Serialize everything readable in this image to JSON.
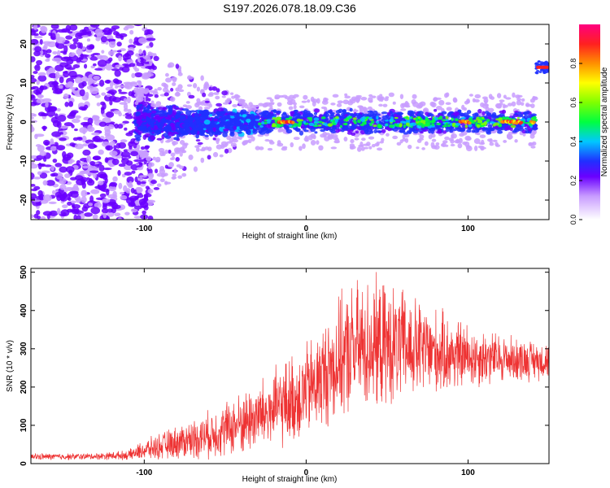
{
  "title": "S197.2026.078.18.09.C36",
  "chart_data": [
    {
      "type": "heatmap",
      "title": "S197.2026.078.18.09.C36",
      "xlabel": "Height of straight line (km)",
      "ylabel": "Frequency (Hz)",
      "xlim": [
        -170,
        150
      ],
      "ylim": [
        -25,
        25
      ],
      "xticks": [
        -100,
        0,
        100
      ],
      "xtick_labels": [
        "-100",
        "0",
        "100"
      ],
      "yticks": [
        -20,
        -10,
        0,
        10,
        20
      ],
      "ytick_labels": [
        "-20",
        "-10",
        "0",
        "10",
        "20"
      ],
      "colorbar": {
        "label": "Normalized spectral amplitude",
        "range": [
          0,
          1
        ],
        "ticks": [
          0,
          0.2,
          0.4,
          0.6,
          0.8
        ],
        "tick_labels": [
          "0.0",
          "0.2",
          "0.4",
          "0.6",
          "0.8"
        ]
      },
      "features": {
        "noise_region_x": [
          -170,
          -105
        ],
        "dispersed_band_x": [
          -105,
          -30
        ],
        "signal_line_frequency_hz": 0,
        "signal_line_x": [
          -30,
          142
        ],
        "secondary_signal": {
          "x": [
            142,
            150
          ],
          "frequency_hz": 14
        }
      }
    },
    {
      "type": "line",
      "xlabel": "Height of straight line (km)",
      "ylabel": "SNR (10 * v/v)",
      "xlim": [
        -170,
        150
      ],
      "ylim": [
        0,
        510
      ],
      "xticks": [
        -100,
        0,
        100
      ],
      "xtick_labels": [
        "-100",
        "0",
        "100"
      ],
      "yticks": [
        0,
        100,
        200,
        300,
        400,
        500
      ],
      "ytick_labels": [
        "0",
        "100",
        "200",
        "300",
        "400",
        "500"
      ],
      "color": "#ee3333",
      "envelope": {
        "x": [
          -170,
          -150,
          -130,
          -110,
          -100,
          -80,
          -60,
          -40,
          -20,
          -5,
          5,
          20,
          30,
          40,
          60,
          80,
          100,
          120,
          140,
          150
        ],
        "mean": [
          18,
          18,
          19,
          22,
          35,
          55,
          75,
          105,
          140,
          175,
          205,
          270,
          300,
          310,
          305,
          290,
          280,
          275,
          270,
          270
        ],
        "amp": [
          10,
          10,
          10,
          14,
          30,
          50,
          70,
          95,
          120,
          140,
          150,
          180,
          200,
          200,
          170,
          130,
          100,
          75,
          60,
          55
        ]
      }
    }
  ]
}
